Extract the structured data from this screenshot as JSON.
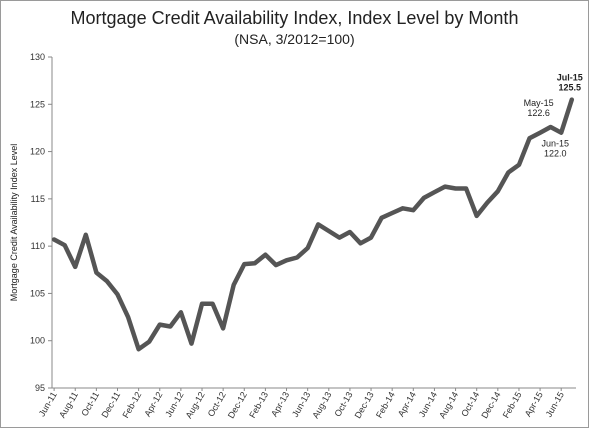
{
  "chart_data": {
    "type": "line",
    "title": "Mortgage Credit Availability Index, Index Level by Month",
    "subtitle": "(NSA, 3/2012=100)",
    "ylabel": "Mortgage Credit Availability Index Level",
    "xlabel": "",
    "ylim": [
      95,
      130
    ],
    "yticks": [
      95,
      100,
      105,
      110,
      115,
      120,
      125,
      130
    ],
    "grid": false,
    "x": [
      "Jun-11",
      "Jul-11",
      "Aug-11",
      "Sep-11",
      "Oct-11",
      "Nov-11",
      "Dec-11",
      "Jan-12",
      "Feb-12",
      "Mar-12",
      "Apr-12",
      "May-12",
      "Jun-12",
      "Jul-12",
      "Aug-12",
      "Sep-12",
      "Oct-12",
      "Nov-12",
      "Dec-12",
      "Jan-13",
      "Feb-13",
      "Mar-13",
      "Apr-13",
      "May-13",
      "Jun-13",
      "Jul-13",
      "Aug-13",
      "Sep-13",
      "Oct-13",
      "Nov-13",
      "Dec-13",
      "Jan-14",
      "Feb-14",
      "Mar-14",
      "Apr-14",
      "May-14",
      "Jun-14",
      "Jul-14",
      "Aug-14",
      "Sep-14",
      "Oct-14",
      "Nov-14",
      "Dec-14",
      "Jan-15",
      "Feb-15",
      "Mar-15",
      "Apr-15",
      "May-15",
      "Jun-15",
      "Jul-15"
    ],
    "xticklabels": [
      "Jun-11",
      "Aug-11",
      "Oct-11",
      "Dec-11",
      "Feb-12",
      "Apr-12",
      "Jun-12",
      "Aug-12",
      "Oct-12",
      "Dec-12",
      "Feb-13",
      "Apr-13",
      "Jun-13",
      "Aug-13",
      "Oct-13",
      "Dec-13",
      "Feb-14",
      "Apr-14",
      "Jun-14",
      "Aug-14",
      "Oct-14",
      "Dec-14",
      "Feb-15",
      "Apr-15",
      "Jun-15"
    ],
    "series": [
      {
        "name": "",
        "color": "#555555",
        "values": [
          110.7,
          110.1,
          107.8,
          111.2,
          107.2,
          106.3,
          104.9,
          102.5,
          99.1,
          99.9,
          101.7,
          101.5,
          103.0,
          99.7,
          103.9,
          103.9,
          101.3,
          105.9,
          108.1,
          108.2,
          109.1,
          108.0,
          108.5,
          108.8,
          109.8,
          112.3,
          111.6,
          110.9,
          111.5,
          110.3,
          110.9,
          113.0,
          113.5,
          114.0,
          113.8,
          115.1,
          115.7,
          116.3,
          116.1,
          116.1,
          113.2,
          114.6,
          115.8,
          117.8,
          118.6,
          121.4,
          122.0,
          122.6,
          122.0,
          125.5
        ]
      }
    ],
    "annotations": [
      {
        "label": "May-15",
        "value": "122.6",
        "x": "May-15"
      },
      {
        "label": "Jun-15",
        "value": "122.0",
        "x": "Jun-15"
      },
      {
        "label": "Jul-15",
        "value": "125.5",
        "x": "Jul-15"
      }
    ]
  }
}
